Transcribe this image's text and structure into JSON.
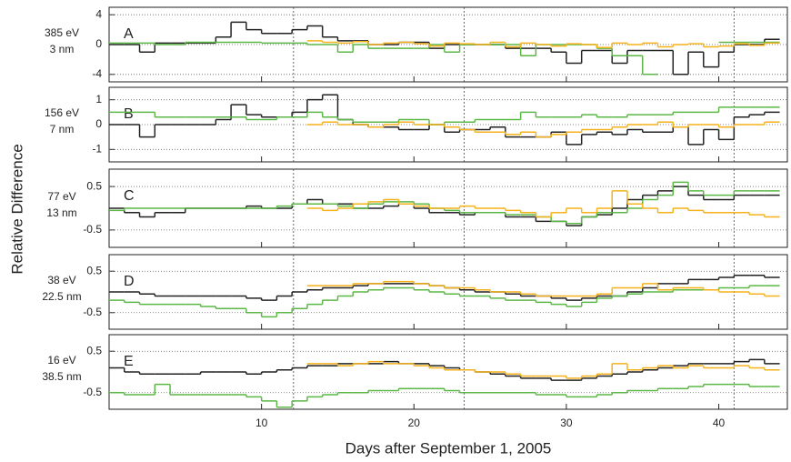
{
  "ylabel": "Relative Difference",
  "reference_days": [
    12.1,
    23.3,
    41
  ],
  "chart_data": [
    {
      "type": "line",
      "label": "A",
      "side_label": [
        "385 eV",
        "3 nm"
      ],
      "xlim": [
        0,
        44.5
      ],
      "xticks": [
        10,
        20,
        30,
        40
      ],
      "ylim": [
        -5,
        5
      ],
      "yticks": [
        -4,
        0,
        4
      ],
      "grid": true,
      "x": [
        0,
        1,
        2,
        3,
        4,
        5,
        6,
        7,
        8,
        9,
        10,
        11,
        12,
        13,
        14,
        15,
        16,
        17,
        18,
        19,
        20,
        21,
        22,
        23,
        24,
        25,
        26,
        27,
        28,
        29,
        30,
        31,
        32,
        33,
        34,
        35,
        36,
        37,
        38,
        39,
        40,
        41,
        42,
        43
      ],
      "series": [
        {
          "color": "#222222",
          "values": [
            0,
            0,
            -1,
            0.2,
            0.2,
            0.2,
            0.2,
            1,
            3,
            2,
            1.5,
            1.5,
            2,
            2.5,
            1,
            0.5,
            0.5,
            0,
            0,
            0.3,
            0.3,
            -0.5,
            0,
            0,
            0,
            0,
            -0.5,
            -0.5,
            -0.5,
            -1,
            -2.5,
            -0.8,
            -0.8,
            -2.5,
            -0.8,
            -0.8,
            -0.8,
            -4,
            -1,
            -3,
            -1,
            0,
            0,
            0.7
          ]
        },
        {
          "color": "#5cb846",
          "values": [
            0.2,
            0.2,
            0.2,
            0,
            0,
            0.3,
            0.3,
            0.3,
            0.3,
            0.3,
            0.2,
            0.2,
            0.2,
            0,
            0,
            -1,
            0,
            -0.5,
            -0.5,
            -0.5,
            -0.5,
            0,
            -1,
            0,
            0,
            0,
            0,
            -1.5,
            0,
            0,
            0,
            0,
            -0.5,
            -1.5,
            -1.5,
            -4,
            null,
            null,
            null,
            null,
            0.3,
            0.3,
            0.3,
            0.3
          ]
        },
        {
          "color": "#f5b21c",
          "values": [
            null,
            null,
            null,
            null,
            null,
            null,
            null,
            null,
            null,
            null,
            null,
            null,
            null,
            0.5,
            0.3,
            0.2,
            0.4,
            0,
            0.2,
            0.3,
            0.1,
            -0.2,
            0.2,
            0.1,
            0,
            0.3,
            -0.3,
            0.2,
            0,
            -0.2,
            0.1,
            0,
            -0.4,
            0.2,
            0,
            0.2,
            -0.3,
            0,
            0.1,
            -0.3,
            -0.2,
            0.1,
            -0.1,
            0.2
          ]
        }
      ]
    },
    {
      "type": "line",
      "label": "B",
      "side_label": [
        "156 eV",
        "7 nm"
      ],
      "xlim": [
        0,
        44.5
      ],
      "xticks": [
        10,
        20,
        30,
        40
      ],
      "ylim": [
        -1.5,
        1.5
      ],
      "yticks": [
        -1,
        0,
        1
      ],
      "grid": true,
      "x": [
        0,
        1,
        2,
        3,
        4,
        5,
        6,
        7,
        8,
        9,
        10,
        11,
        12,
        13,
        14,
        15,
        16,
        17,
        18,
        19,
        20,
        21,
        22,
        23,
        24,
        25,
        26,
        27,
        28,
        29,
        30,
        31,
        32,
        33,
        34,
        35,
        36,
        37,
        38,
        39,
        40,
        41,
        42,
        43
      ],
      "series": [
        {
          "color": "#222222",
          "values": [
            0,
            0,
            -0.5,
            0,
            0,
            0,
            0,
            0.2,
            0.8,
            0.4,
            0.3,
            0.3,
            0.5,
            1,
            1.2,
            0.2,
            0,
            -0.1,
            -0.1,
            -0.2,
            -0.2,
            0,
            -0.3,
            -0.2,
            -0.2,
            -0.1,
            -0.5,
            -0.5,
            -0.5,
            -0.3,
            -0.8,
            -0.4,
            -0.3,
            -0.4,
            -0.2,
            -0.3,
            -0.3,
            -0.1,
            -0.8,
            -0.2,
            -0.6,
            0.3,
            0.4,
            0.5
          ]
        },
        {
          "color": "#5cb846",
          "values": [
            0.5,
            0.5,
            0.5,
            0.3,
            0.3,
            0.3,
            0.3,
            0.3,
            0.3,
            0.2,
            0.2,
            0.3,
            0.3,
            0.5,
            0.3,
            0.2,
            0.1,
            0.1,
            0.1,
            0.2,
            0.2,
            0,
            0.1,
            0.1,
            0.2,
            0.2,
            0.2,
            0.5,
            0.3,
            0.3,
            0.3,
            0.4,
            0.3,
            0.3,
            0.4,
            0.4,
            0.4,
            0.5,
            0.5,
            0.5,
            0.7,
            0.7,
            0.7,
            0.7
          ]
        },
        {
          "color": "#f5b21c",
          "values": [
            null,
            null,
            null,
            null,
            null,
            null,
            null,
            null,
            null,
            null,
            null,
            null,
            null,
            0,
            0.1,
            0,
            0,
            -0.1,
            0,
            0.1,
            0,
            0,
            -0.1,
            -0.2,
            -0.3,
            -0.3,
            -0.4,
            -0.3,
            -0.5,
            -0.4,
            -0.3,
            -0.2,
            -0.2,
            -0.1,
            0,
            0,
            0.1,
            -0.1,
            0,
            0,
            -0.1,
            0,
            0,
            0.1
          ]
        }
      ]
    },
    {
      "type": "line",
      "label": "C",
      "side_label": [
        "77 eV",
        "13 nm"
      ],
      "xlim": [
        0,
        44.5
      ],
      "xticks": [
        10,
        20,
        30,
        40
      ],
      "ylim": [
        -0.9,
        0.9
      ],
      "yticks": [
        -0.5,
        0.5
      ],
      "grid": true,
      "x": [
        0,
        1,
        2,
        3,
        4,
        5,
        6,
        7,
        8,
        9,
        10,
        11,
        12,
        13,
        14,
        15,
        16,
        17,
        18,
        19,
        20,
        21,
        22,
        23,
        24,
        25,
        26,
        27,
        28,
        29,
        30,
        31,
        32,
        33,
        34,
        35,
        36,
        37,
        38,
        39,
        40,
        41,
        42,
        43
      ],
      "series": [
        {
          "color": "#222222",
          "values": [
            0,
            -0.1,
            -0.2,
            -0.1,
            -0.1,
            0,
            0,
            0,
            0,
            0.05,
            0,
            0,
            0.1,
            0.2,
            0.1,
            0.1,
            0,
            0,
            0.05,
            0.1,
            0,
            -0.1,
            -0.1,
            -0.15,
            -0.1,
            -0.1,
            -0.2,
            -0.2,
            -0.3,
            -0.3,
            -0.4,
            -0.2,
            -0.15,
            0,
            0.2,
            0.3,
            0.4,
            0.5,
            0.3,
            0.2,
            0.2,
            0.3,
            0.3,
            0.3
          ]
        },
        {
          "color": "#5cb846",
          "values": [
            -0.05,
            0,
            0,
            0,
            0,
            0,
            0,
            0,
            0,
            0,
            0,
            0.05,
            0.1,
            0.1,
            0.1,
            0.05,
            0,
            0.1,
            0.15,
            0.15,
            0.1,
            0,
            -0.05,
            -0.1,
            -0.1,
            -0.1,
            -0.15,
            -0.15,
            -0.2,
            -0.3,
            -0.35,
            -0.2,
            -0.1,
            -0.1,
            0,
            0.2,
            0.3,
            0.6,
            0.4,
            0.3,
            0.3,
            0.4,
            0.4,
            0.4
          ]
        },
        {
          "color": "#f5b21c",
          "values": [
            null,
            null,
            null,
            null,
            null,
            null,
            null,
            null,
            null,
            null,
            null,
            null,
            null,
            0,
            -0.05,
            0,
            0.1,
            0.15,
            0.2,
            0.1,
            0.05,
            0,
            0,
            0.05,
            0,
            0,
            -0.05,
            -0.1,
            -0.2,
            -0.1,
            0,
            -0.1,
            0,
            0.4,
            0.1,
            0,
            -0.1,
            0,
            -0.05,
            -0.1,
            -0.1,
            -0.1,
            -0.15,
            -0.2
          ]
        }
      ]
    },
    {
      "type": "line",
      "label": "D",
      "side_label": [
        "38 eV",
        "22.5 nm"
      ],
      "xlim": [
        0,
        44.5
      ],
      "xticks": [
        10,
        20,
        30,
        40
      ],
      "ylim": [
        -0.9,
        0.9
      ],
      "yticks": [
        -0.5,
        0.5
      ],
      "grid": true,
      "x": [
        0,
        1,
        2,
        3,
        4,
        5,
        6,
        7,
        8,
        9,
        10,
        11,
        12,
        13,
        14,
        15,
        16,
        17,
        18,
        19,
        20,
        21,
        22,
        23,
        24,
        25,
        26,
        27,
        28,
        29,
        30,
        31,
        32,
        33,
        34,
        35,
        36,
        37,
        38,
        39,
        40,
        41,
        42,
        43
      ],
      "series": [
        {
          "color": "#222222",
          "values": [
            0,
            0,
            -0.05,
            -0.1,
            -0.1,
            -0.1,
            -0.1,
            -0.1,
            -0.1,
            -0.15,
            -0.2,
            -0.1,
            0,
            0.05,
            0.1,
            0.1,
            0.15,
            0.2,
            0.2,
            0.2,
            0.2,
            0.15,
            0.1,
            0.05,
            0,
            0,
            -0.05,
            -0.1,
            -0.1,
            -0.15,
            -0.2,
            -0.15,
            -0.1,
            -0.1,
            0,
            0.1,
            0.2,
            0.2,
            0.3,
            0.3,
            0.35,
            0.4,
            0.4,
            0.35
          ]
        },
        {
          "color": "#5cb846",
          "values": [
            -0.2,
            -0.25,
            -0.3,
            -0.3,
            -0.3,
            -0.3,
            -0.35,
            -0.4,
            -0.4,
            -0.5,
            -0.6,
            -0.5,
            -0.4,
            -0.3,
            -0.2,
            -0.1,
            0,
            0.05,
            0.1,
            0.1,
            0.05,
            0,
            -0.05,
            -0.1,
            -0.1,
            -0.15,
            -0.2,
            -0.2,
            -0.25,
            -0.3,
            -0.35,
            -0.25,
            -0.15,
            -0.1,
            -0.05,
            0,
            0,
            0.05,
            0.05,
            0.05,
            0.1,
            0.1,
            0.15,
            0.15
          ]
        },
        {
          "color": "#f5b21c",
          "values": [
            null,
            null,
            null,
            null,
            null,
            null,
            null,
            null,
            null,
            null,
            null,
            null,
            null,
            0.15,
            0.15,
            0.15,
            0.2,
            0.2,
            0.25,
            0.25,
            0.2,
            0.15,
            0.1,
            0.1,
            0.05,
            0,
            0,
            -0.05,
            -0.1,
            -0.1,
            -0.1,
            -0.1,
            -0.05,
            0.1,
            0.1,
            0.2,
            0.05,
            0.1,
            0.1,
            0.05,
            0,
            0,
            -0.05,
            -0.1
          ]
        }
      ]
    },
    {
      "type": "line",
      "label": "E",
      "side_label": [
        "16 eV",
        "38.5 nm"
      ],
      "xlim": [
        0,
        44.5
      ],
      "xticks": [
        10,
        20,
        30,
        40
      ],
      "ylim": [
        -0.9,
        0.9
      ],
      "yticks": [
        -0.5,
        0.5
      ],
      "grid": true,
      "xlabel": "Days after September 1, 2005",
      "x": [
        0,
        1,
        2,
        3,
        4,
        5,
        6,
        7,
        8,
        9,
        10,
        11,
        12,
        13,
        14,
        15,
        16,
        17,
        18,
        19,
        20,
        21,
        22,
        23,
        24,
        25,
        26,
        27,
        28,
        29,
        30,
        31,
        32,
        33,
        34,
        35,
        36,
        37,
        38,
        39,
        40,
        41,
        42,
        43
      ],
      "series": [
        {
          "color": "#222222",
          "values": [
            0.1,
            0,
            -0.05,
            -0.05,
            -0.05,
            -0.05,
            0,
            0,
            0,
            -0.05,
            0,
            0.05,
            0.1,
            0.15,
            0.15,
            0.2,
            0.2,
            0.2,
            0.25,
            0.2,
            0.2,
            0.15,
            0.1,
            0.05,
            0,
            -0.05,
            -0.1,
            -0.15,
            -0.15,
            -0.2,
            -0.2,
            -0.15,
            -0.1,
            -0.05,
            0,
            0.05,
            0.1,
            0.15,
            0.2,
            0.2,
            0.2,
            0.25,
            0.3,
            0.2
          ]
        },
        {
          "color": "#5cb846",
          "values": [
            -0.5,
            -0.55,
            -0.55,
            -0.3,
            -0.55,
            -0.55,
            -0.55,
            -0.55,
            -0.55,
            -0.6,
            -0.7,
            -0.85,
            -0.7,
            -0.6,
            -0.55,
            -0.5,
            -0.5,
            -0.45,
            -0.45,
            -0.4,
            -0.4,
            -0.4,
            -0.45,
            -0.5,
            -0.5,
            -0.5,
            -0.5,
            -0.5,
            -0.55,
            -0.55,
            -0.6,
            -0.6,
            -0.55,
            -0.5,
            -0.45,
            -0.45,
            -0.4,
            -0.4,
            -0.35,
            -0.3,
            -0.3,
            -0.3,
            -0.35,
            -0.35
          ]
        },
        {
          "color": "#f5b21c",
          "values": [
            null,
            null,
            null,
            null,
            null,
            null,
            null,
            null,
            null,
            null,
            null,
            null,
            null,
            0.2,
            0.2,
            0.15,
            0.2,
            0.25,
            0.2,
            0.2,
            0.15,
            0.1,
            0.05,
            0.05,
            0,
            0,
            -0.05,
            -0.1,
            -0.1,
            -0.1,
            -0.15,
            -0.1,
            -0.05,
            0.2,
            0.05,
            0.1,
            0.15,
            0.1,
            0.15,
            0.1,
            0.1,
            0.15,
            0.1,
            0.05
          ]
        }
      ]
    }
  ]
}
